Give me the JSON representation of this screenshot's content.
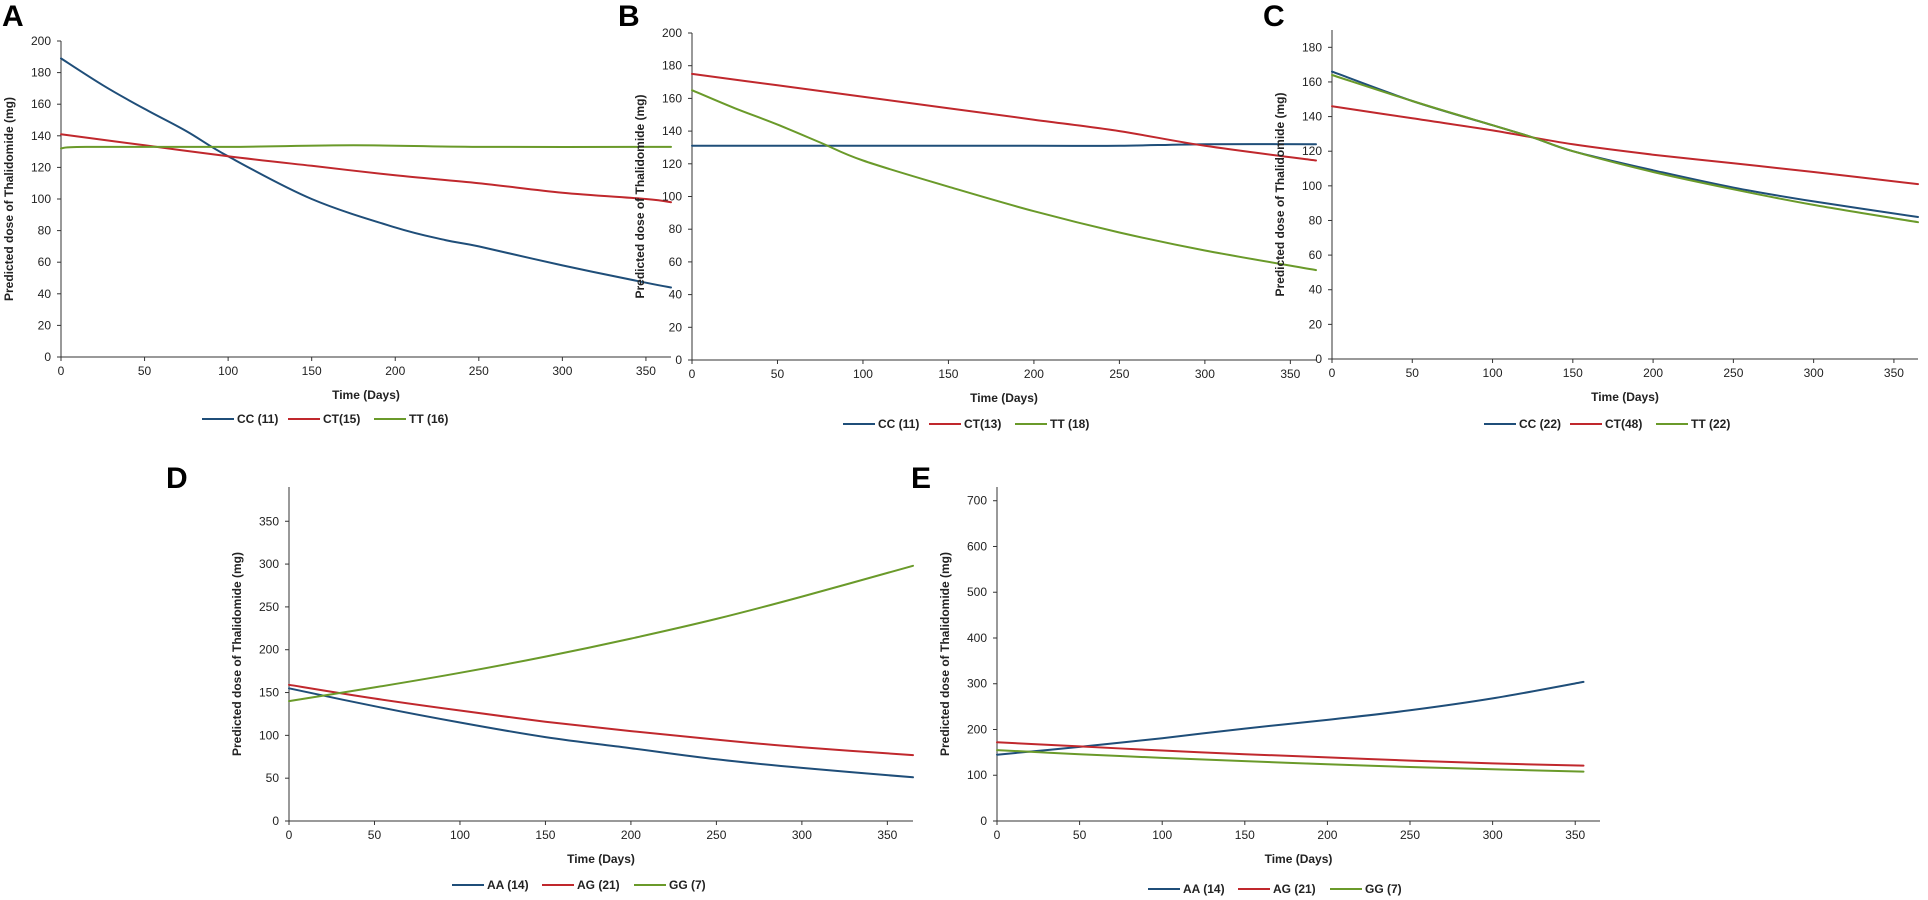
{
  "colors": {
    "blue": "#1f4e79",
    "red": "#c0282d",
    "green": "#6a9a2a",
    "axis": "#333333"
  },
  "chart_data": [
    {
      "type": "line",
      "panel": "A",
      "xlabel": "Time (Days)",
      "ylabel": "Predicted dose of Thalidomide (mg)",
      "xlim": [
        0,
        365
      ],
      "ylim": [
        0,
        200
      ],
      "xticks": [
        0,
        50,
        100,
        150,
        200,
        250,
        300,
        350
      ],
      "yticks": [
        0,
        20,
        40,
        60,
        80,
        100,
        120,
        140,
        160,
        180,
        200
      ],
      "legend_position": "bottom",
      "series": [
        {
          "name": "CC (11)",
          "color": "#1f4e79",
          "x": [
            0,
            25,
            50,
            75,
            100,
            150,
            200,
            230,
            250,
            300,
            350,
            365
          ],
          "y": [
            189,
            172,
            157,
            143,
            127,
            100,
            82,
            74,
            70,
            58,
            47,
            44
          ]
        },
        {
          "name": "CT(15)",
          "color": "#c0282d",
          "x": [
            0,
            50,
            100,
            150,
            200,
            250,
            300,
            350,
            365
          ],
          "y": [
            141,
            134,
            127,
            121,
            115,
            110,
            104,
            100,
            98
          ]
        },
        {
          "name": "TT (16)",
          "color": "#6a9a2a",
          "x": [
            0,
            15,
            100,
            175,
            250,
            365
          ],
          "y": [
            132,
            133,
            133,
            134,
            133,
            133
          ]
        }
      ]
    },
    {
      "type": "line",
      "panel": "B",
      "xlabel": "Time (Days)",
      "ylabel": "Predicted dose of Thalidomide (mg)",
      "xlim": [
        0,
        365
      ],
      "ylim": [
        0,
        200
      ],
      "xticks": [
        0,
        50,
        100,
        150,
        200,
        250,
        300,
        350
      ],
      "yticks": [
        0,
        20,
        40,
        60,
        80,
        100,
        120,
        140,
        160,
        180,
        200
      ],
      "legend_position": "bottom",
      "series": [
        {
          "name": "CC (11)",
          "color": "#1f4e79",
          "x": [
            0,
            100,
            200,
            250,
            300,
            365
          ],
          "y": [
            131,
            131,
            131,
            131,
            132,
            132
          ]
        },
        {
          "name": "CT(13)",
          "color": "#c0282d",
          "x": [
            0,
            50,
            100,
            150,
            200,
            250,
            300,
            365
          ],
          "y": [
            175,
            168,
            161,
            154,
            147,
            140,
            131,
            122
          ]
        },
        {
          "name": "TT (18)",
          "color": "#6a9a2a",
          "x": [
            0,
            25,
            50,
            75,
            100,
            150,
            200,
            250,
            300,
            365
          ],
          "y": [
            165,
            154,
            144,
            133,
            122,
            106,
            91,
            78,
            67,
            55
          ]
        }
      ]
    },
    {
      "type": "line",
      "panel": "C",
      "xlabel": "Time (Days)",
      "ylabel": "Predicted dose of Thalidomide (mg)",
      "xlim": [
        0,
        365
      ],
      "ylim": [
        0,
        190
      ],
      "xticks": [
        0,
        50,
        100,
        150,
        200,
        250,
        300,
        350
      ],
      "yticks": [
        0,
        20,
        40,
        60,
        80,
        100,
        120,
        140,
        160,
        180
      ],
      "legend_position": "bottom",
      "series": [
        {
          "name": "CC (22)",
          "color": "#1f4e79",
          "x": [
            0,
            50,
            100,
            125,
            150,
            200,
            250,
            300,
            365
          ],
          "y": [
            166,
            149,
            135,
            128,
            120,
            109,
            99,
            91,
            82
          ]
        },
        {
          "name": "CT(48)",
          "color": "#c0282d",
          "x": [
            0,
            50,
            100,
            150,
            200,
            250,
            300,
            365
          ],
          "y": [
            146,
            139,
            132,
            124,
            118,
            113,
            108,
            101
          ]
        },
        {
          "name": "TT (22)",
          "color": "#6a9a2a",
          "x": [
            0,
            50,
            100,
            125,
            150,
            200,
            250,
            300,
            365
          ],
          "y": [
            164,
            149,
            135,
            128,
            120,
            108,
            98,
            89,
            79
          ]
        }
      ]
    },
    {
      "type": "line",
      "panel": "D",
      "xlabel": "Time (Days)",
      "ylabel": "Predicted dose of Thalidomide (mg)",
      "xlim": [
        0,
        365
      ],
      "ylim": [
        0,
        390
      ],
      "xticks": [
        0,
        50,
        100,
        150,
        200,
        250,
        300,
        350
      ],
      "yticks": [
        0,
        50,
        100,
        150,
        200,
        250,
        300,
        350
      ],
      "legend_position": "bottom",
      "series": [
        {
          "name": "AA (14)",
          "color": "#1f4e79",
          "x": [
            0,
            50,
            100,
            150,
            200,
            250,
            300,
            365
          ],
          "y": [
            155,
            134,
            115,
            98,
            85,
            72,
            62,
            51
          ]
        },
        {
          "name": "AG (21)",
          "color": "#c0282d",
          "x": [
            0,
            50,
            100,
            150,
            200,
            250,
            300,
            365
          ],
          "y": [
            159,
            143,
            129,
            116,
            105,
            95,
            86,
            77
          ]
        },
        {
          "name": "GG (7)",
          "color": "#6a9a2a",
          "x": [
            0,
            50,
            100,
            150,
            200,
            250,
            300,
            365
          ],
          "y": [
            140,
            156,
            173,
            192,
            213,
            236,
            262,
            298
          ]
        }
      ]
    },
    {
      "type": "line",
      "panel": "E",
      "xlabel": "Time (Days)",
      "ylabel": "Predicted dose of Thalidomide (mg)",
      "xlim": [
        0,
        365
      ],
      "ylim": [
        0,
        730
      ],
      "xticks": [
        0,
        50,
        100,
        150,
        200,
        250,
        300,
        350
      ],
      "yticks": [
        0,
        100,
        200,
        300,
        400,
        500,
        600,
        700
      ],
      "legend_position": "bottom",
      "series": [
        {
          "name": "AA (14)",
          "color": "#1f4e79",
          "x": [
            0,
            50,
            100,
            150,
            200,
            250,
            300,
            355
          ],
          "y": [
            145,
            162,
            181,
            202,
            221,
            242,
            268,
            304
          ]
        },
        {
          "name": "AG (21)",
          "color": "#c0282d",
          "x": [
            0,
            50,
            100,
            150,
            200,
            250,
            300,
            355
          ],
          "y": [
            172,
            163,
            154,
            146,
            139,
            132,
            126,
            121
          ]
        },
        {
          "name": "GG (7)",
          "color": "#6a9a2a",
          "x": [
            0,
            50,
            100,
            150,
            200,
            250,
            300,
            355
          ],
          "y": [
            155,
            146,
            138,
            131,
            124,
            118,
            113,
            108
          ]
        }
      ]
    }
  ]
}
